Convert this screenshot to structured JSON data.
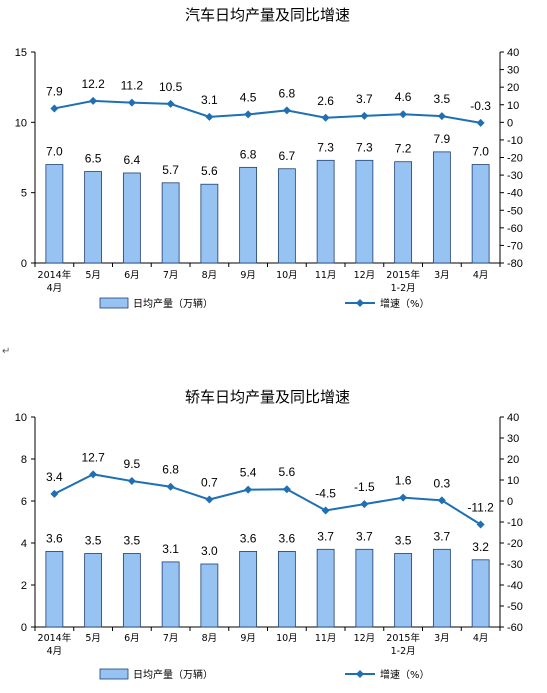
{
  "paragraph_mark": "↵",
  "chart_data": [
    {
      "type": "bar+line",
      "title": "汽车日均产量及同比增速",
      "categories": [
        "2014年\n4月",
        "5月",
        "6月",
        "7月",
        "8月",
        "9月",
        "10月",
        "11月",
        "12月",
        "2015年\n1-2月",
        "3月",
        "4月"
      ],
      "series": [
        {
          "name": "日均产量（万辆）",
          "type": "bar",
          "axis": "left",
          "values": [
            7.0,
            6.5,
            6.4,
            5.7,
            5.6,
            6.8,
            6.7,
            7.3,
            7.3,
            7.2,
            7.9,
            7.0
          ]
        },
        {
          "name": "增速（%）",
          "type": "line",
          "axis": "right",
          "values": [
            7.9,
            12.2,
            11.2,
            10.5,
            3.1,
            4.5,
            6.8,
            2.6,
            3.7,
            4.6,
            3.5,
            -0.3
          ]
        }
      ],
      "y_left": {
        "min": 0,
        "max": 15,
        "ticks": [
          0,
          5,
          10,
          15
        ]
      },
      "y_right": {
        "min": -80,
        "max": 40,
        "ticks": [
          40,
          30,
          20,
          10,
          0,
          -10,
          -20,
          -30,
          -40,
          -50,
          -60,
          -70,
          -80
        ]
      },
      "legend_position": "bottom",
      "grid": false,
      "colors": {
        "bar_fill": "#96C3F2",
        "bar_stroke": "#1F3E72",
        "line": "#1F6FB5"
      }
    },
    {
      "type": "bar+line",
      "title": "轿车日均产量及同比增速",
      "categories": [
        "2014年\n4月",
        "5月",
        "6月",
        "7月",
        "8月",
        "9月",
        "10月",
        "11月",
        "12月",
        "2015年\n1-2月",
        "3月",
        "4月"
      ],
      "series": [
        {
          "name": "日均产量（万辆）",
          "type": "bar",
          "axis": "left",
          "values": [
            3.6,
            3.5,
            3.5,
            3.1,
            3.0,
            3.6,
            3.6,
            3.7,
            3.7,
            3.5,
            3.7,
            3.2
          ]
        },
        {
          "name": "增速（%）",
          "type": "line",
          "axis": "right",
          "values": [
            3.4,
            12.7,
            9.5,
            6.8,
            0.7,
            5.4,
            5.6,
            -4.5,
            -1.5,
            1.6,
            0.3,
            -11.2
          ]
        }
      ],
      "y_left": {
        "min": 0,
        "max": 10,
        "ticks": [
          0,
          2,
          4,
          6,
          8,
          10
        ]
      },
      "y_right": {
        "min": -60,
        "max": 40,
        "ticks": [
          40,
          30,
          20,
          10,
          0,
          -10,
          -20,
          -30,
          -40,
          -50,
          -60
        ]
      },
      "legend_position": "bottom",
      "grid": false,
      "colors": {
        "bar_fill": "#96C3F2",
        "bar_stroke": "#1F3E72",
        "line": "#1F6FB5"
      }
    }
  ]
}
